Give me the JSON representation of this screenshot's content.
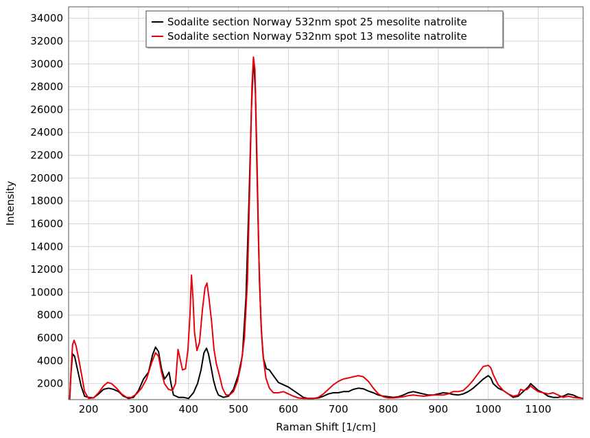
{
  "chart_data": {
    "type": "line",
    "xlabel": "Raman Shift [1/cm]",
    "ylabel": "Intensity",
    "xlim": [
      160,
      1190
    ],
    "ylim": [
      600,
      35000
    ],
    "grid": true,
    "legend_position": "top-center",
    "x_ticks": [
      200,
      300,
      400,
      500,
      600,
      700,
      800,
      900,
      1000,
      1100
    ],
    "y_ticks": [
      2000,
      4000,
      6000,
      8000,
      10000,
      12000,
      14000,
      16000,
      18000,
      20000,
      22000,
      24000,
      26000,
      28000,
      30000,
      32000,
      34000
    ],
    "series": [
      {
        "name": "Sodalite section Norway 532nm spot 25 mesolite natrolite",
        "color": "#000000",
        "points": [
          [
            162,
            500
          ],
          [
            165,
            3000
          ],
          [
            168,
            4600
          ],
          [
            172,
            4400
          ],
          [
            178,
            3200
          ],
          [
            185,
            1800
          ],
          [
            192,
            900
          ],
          [
            200,
            800
          ],
          [
            210,
            750
          ],
          [
            220,
            1100
          ],
          [
            230,
            1500
          ],
          [
            240,
            1600
          ],
          [
            250,
            1500
          ],
          [
            260,
            1300
          ],
          [
            270,
            900
          ],
          [
            280,
            700
          ],
          [
            290,
            800
          ],
          [
            300,
            1400
          ],
          [
            310,
            2400
          ],
          [
            320,
            3000
          ],
          [
            328,
            4500
          ],
          [
            334,
            5200
          ],
          [
            340,
            4800
          ],
          [
            346,
            3300
          ],
          [
            352,
            2400
          ],
          [
            357,
            2700
          ],
          [
            361,
            3000
          ],
          [
            365,
            2000
          ],
          [
            370,
            1000
          ],
          [
            380,
            800
          ],
          [
            390,
            800
          ],
          [
            400,
            700
          ],
          [
            410,
            1200
          ],
          [
            418,
            2000
          ],
          [
            425,
            3200
          ],
          [
            431,
            4700
          ],
          [
            436,
            5100
          ],
          [
            440,
            4600
          ],
          [
            445,
            3500
          ],
          [
            450,
            2300
          ],
          [
            455,
            1500
          ],
          [
            460,
            1000
          ],
          [
            470,
            800
          ],
          [
            480,
            900
          ],
          [
            490,
            1500
          ],
          [
            500,
            2800
          ],
          [
            508,
            4500
          ],
          [
            515,
            9500
          ],
          [
            521,
            18000
          ],
          [
            526,
            26000
          ],
          [
            529,
            29500
          ],
          [
            531,
            30000
          ],
          [
            534,
            27500
          ],
          [
            538,
            19000
          ],
          [
            542,
            11000
          ],
          [
            546,
            6500
          ],
          [
            550,
            4200
          ],
          [
            556,
            3300
          ],
          [
            562,
            3200
          ],
          [
            570,
            2700
          ],
          [
            580,
            2100
          ],
          [
            590,
            1900
          ],
          [
            600,
            1700
          ],
          [
            610,
            1400
          ],
          [
            620,
            1100
          ],
          [
            630,
            800
          ],
          [
            640,
            700
          ],
          [
            650,
            700
          ],
          [
            660,
            750
          ],
          [
            670,
            900
          ],
          [
            680,
            1100
          ],
          [
            690,
            1200
          ],
          [
            700,
            1200
          ],
          [
            710,
            1300
          ],
          [
            720,
            1300
          ],
          [
            730,
            1500
          ],
          [
            740,
            1600
          ],
          [
            750,
            1550
          ],
          [
            760,
            1350
          ],
          [
            770,
            1200
          ],
          [
            780,
            1000
          ],
          [
            790,
            900
          ],
          [
            800,
            850
          ],
          [
            810,
            800
          ],
          [
            820,
            850
          ],
          [
            830,
            1000
          ],
          [
            840,
            1200
          ],
          [
            850,
            1300
          ],
          [
            860,
            1200
          ],
          [
            870,
            1100
          ],
          [
            880,
            1000
          ],
          [
            890,
            1000
          ],
          [
            900,
            1100
          ],
          [
            910,
            1200
          ],
          [
            920,
            1150
          ],
          [
            930,
            1050
          ],
          [
            940,
            1000
          ],
          [
            950,
            1100
          ],
          [
            960,
            1300
          ],
          [
            970,
            1600
          ],
          [
            980,
            2000
          ],
          [
            990,
            2400
          ],
          [
            1000,
            2700
          ],
          [
            1005,
            2500
          ],
          [
            1010,
            2000
          ],
          [
            1020,
            1600
          ],
          [
            1030,
            1400
          ],
          [
            1040,
            1100
          ],
          [
            1050,
            800
          ],
          [
            1060,
            900
          ],
          [
            1070,
            1300
          ],
          [
            1080,
            1700
          ],
          [
            1085,
            2000
          ],
          [
            1090,
            1800
          ],
          [
            1100,
            1400
          ],
          [
            1110,
            1200
          ],
          [
            1120,
            900
          ],
          [
            1130,
            800
          ],
          [
            1140,
            800
          ],
          [
            1150,
            900
          ],
          [
            1160,
            1100
          ],
          [
            1170,
            1000
          ],
          [
            1180,
            800
          ],
          [
            1190,
            700
          ]
        ]
      },
      {
        "name": "Sodalite section Norway 532nm spot 13 mesolite natrolite",
        "color": "#e8000b",
        "points": [
          [
            162,
            500
          ],
          [
            165,
            3200
          ],
          [
            168,
            5400
          ],
          [
            171,
            5800
          ],
          [
            175,
            5300
          ],
          [
            180,
            4200
          ],
          [
            186,
            2800
          ],
          [
            192,
            1300
          ],
          [
            200,
            700
          ],
          [
            210,
            750
          ],
          [
            220,
            1200
          ],
          [
            230,
            1800
          ],
          [
            238,
            2100
          ],
          [
            246,
            2000
          ],
          [
            256,
            1600
          ],
          [
            266,
            1100
          ],
          [
            276,
            800
          ],
          [
            286,
            800
          ],
          [
            296,
            1100
          ],
          [
            306,
            1600
          ],
          [
            316,
            2400
          ],
          [
            326,
            3800
          ],
          [
            334,
            4700
          ],
          [
            340,
            4400
          ],
          [
            346,
            3000
          ],
          [
            352,
            2000
          ],
          [
            360,
            1500
          ],
          [
            368,
            1400
          ],
          [
            374,
            2000
          ],
          [
            379,
            5000
          ],
          [
            383,
            4200
          ],
          [
            388,
            3200
          ],
          [
            394,
            3300
          ],
          [
            399,
            5000
          ],
          [
            403,
            8000
          ],
          [
            406,
            11500
          ],
          [
            409,
            9500
          ],
          [
            412,
            6500
          ],
          [
            417,
            4900
          ],
          [
            422,
            5600
          ],
          [
            428,
            8500
          ],
          [
            433,
            10400
          ],
          [
            437,
            10800
          ],
          [
            441,
            9500
          ],
          [
            446,
            7500
          ],
          [
            451,
            5000
          ],
          [
            456,
            3700
          ],
          [
            462,
            2700
          ],
          [
            468,
            1600
          ],
          [
            475,
            1000
          ],
          [
            482,
            1000
          ],
          [
            490,
            1300
          ],
          [
            498,
            2200
          ],
          [
            505,
            3600
          ],
          [
            512,
            6000
          ],
          [
            518,
            11000
          ],
          [
            523,
            20000
          ],
          [
            527,
            28000
          ],
          [
            530,
            30600
          ],
          [
            533,
            29500
          ],
          [
            537,
            22000
          ],
          [
            541,
            13000
          ],
          [
            545,
            7500
          ],
          [
            549,
            4500
          ],
          [
            555,
            2500
          ],
          [
            562,
            1600
          ],
          [
            570,
            1200
          ],
          [
            580,
            1200
          ],
          [
            590,
            1300
          ],
          [
            600,
            1100
          ],
          [
            610,
            900
          ],
          [
            620,
            750
          ],
          [
            630,
            700
          ],
          [
            640,
            700
          ],
          [
            650,
            700
          ],
          [
            660,
            800
          ],
          [
            670,
            1100
          ],
          [
            680,
            1500
          ],
          [
            690,
            1900
          ],
          [
            700,
            2200
          ],
          [
            710,
            2400
          ],
          [
            720,
            2500
          ],
          [
            730,
            2600
          ],
          [
            740,
            2700
          ],
          [
            750,
            2600
          ],
          [
            760,
            2200
          ],
          [
            770,
            1600
          ],
          [
            780,
            1100
          ],
          [
            790,
            850
          ],
          [
            800,
            750
          ],
          [
            810,
            750
          ],
          [
            820,
            800
          ],
          [
            830,
            850
          ],
          [
            840,
            950
          ],
          [
            850,
            1000
          ],
          [
            860,
            950
          ],
          [
            870,
            900
          ],
          [
            880,
            950
          ],
          [
            890,
            1000
          ],
          [
            900,
            1000
          ],
          [
            910,
            1000
          ],
          [
            920,
            1100
          ],
          [
            930,
            1300
          ],
          [
            940,
            1300
          ],
          [
            950,
            1400
          ],
          [
            960,
            1800
          ],
          [
            970,
            2300
          ],
          [
            980,
            2900
          ],
          [
            990,
            3500
          ],
          [
            1000,
            3600
          ],
          [
            1005,
            3400
          ],
          [
            1010,
            2800
          ],
          [
            1020,
            1900
          ],
          [
            1030,
            1400
          ],
          [
            1040,
            1100
          ],
          [
            1050,
            900
          ],
          [
            1060,
            1000
          ],
          [
            1065,
            1500
          ],
          [
            1070,
            1400
          ],
          [
            1078,
            1500
          ],
          [
            1085,
            1800
          ],
          [
            1090,
            1600
          ],
          [
            1100,
            1300
          ],
          [
            1110,
            1200
          ],
          [
            1120,
            1100
          ],
          [
            1130,
            1200
          ],
          [
            1140,
            1000
          ],
          [
            1150,
            800
          ],
          [
            1160,
            900
          ],
          [
            1170,
            800
          ],
          [
            1180,
            750
          ],
          [
            1190,
            700
          ]
        ]
      }
    ]
  }
}
